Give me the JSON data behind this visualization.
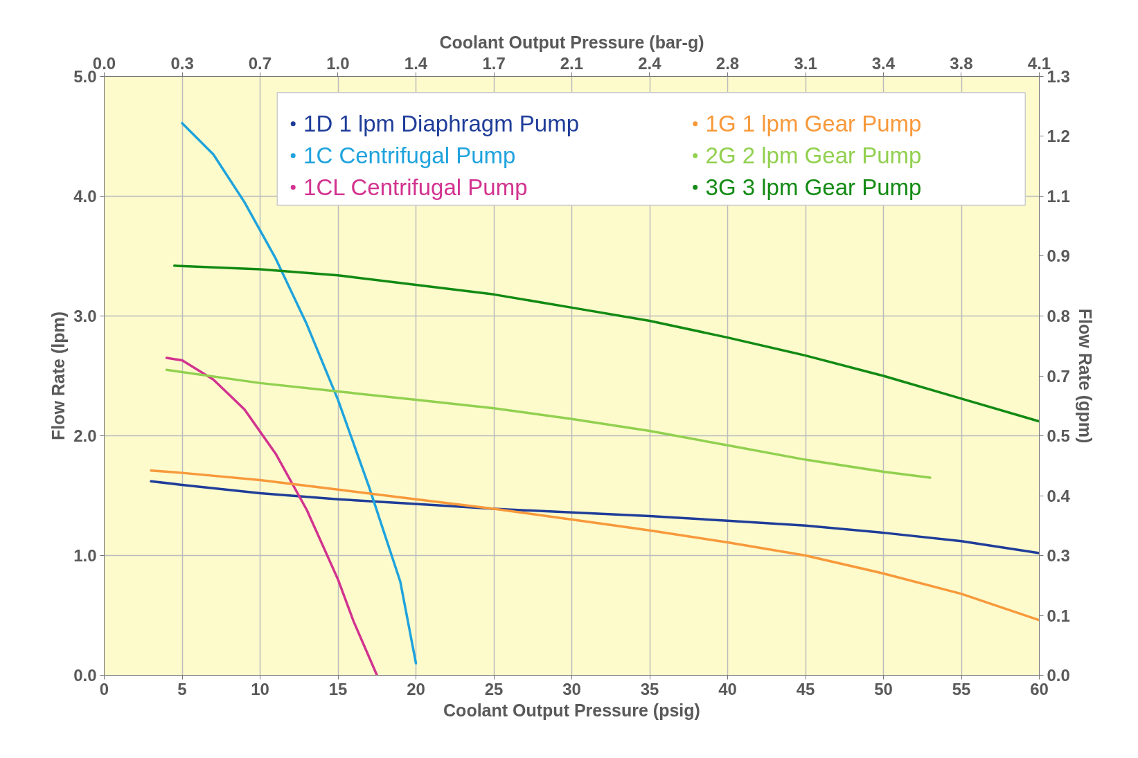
{
  "chart_data": {
    "type": "line",
    "xlabel": "Coolant Output Pressure (psig)",
    "x2label": "Coolant Output Pressure (bar-g)",
    "ylabel": "Flow Rate (lpm)",
    "y2label": "Flow Rate (gpm)",
    "xlim": [
      0,
      60
    ],
    "xticks": [
      0,
      5,
      10,
      15,
      20,
      25,
      30,
      35,
      40,
      45,
      50,
      55,
      60
    ],
    "ylim": [
      0,
      5
    ],
    "yticks": [
      {
        "value": 0,
        "label": "0.0"
      },
      {
        "value": 1,
        "label": "1.0"
      },
      {
        "value": 2,
        "label": "2.0"
      },
      {
        "value": 3,
        "label": "3.0"
      },
      {
        "value": 4,
        "label": "4.0"
      },
      {
        "value": 5,
        "label": "5.0"
      }
    ],
    "x2lim": [
      0,
      4.137
    ],
    "x2ticks": [
      {
        "value": 0,
        "label": "0.0"
      },
      {
        "value": 0.345,
        "label": "0.3"
      },
      {
        "value": 0.689,
        "label": "0.7"
      },
      {
        "value": 1.034,
        "label": "1.0"
      },
      {
        "value": 1.379,
        "label": "1.4"
      },
      {
        "value": 1.724,
        "label": "1.7"
      },
      {
        "value": 2.068,
        "label": "2.1"
      },
      {
        "value": 2.413,
        "label": "2.4"
      },
      {
        "value": 2.758,
        "label": "2.8"
      },
      {
        "value": 3.103,
        "label": "3.1"
      },
      {
        "value": 3.447,
        "label": "3.4"
      },
      {
        "value": 3.792,
        "label": "3.8"
      },
      {
        "value": 4.137,
        "label": "4.1"
      }
    ],
    "y2lim": [
      0,
      1.321
    ],
    "y2ticks": [
      {
        "value": 0,
        "label": "0.0"
      },
      {
        "value": 0.132,
        "label": "0.1"
      },
      {
        "value": 0.264,
        "label": "0.3"
      },
      {
        "value": 0.396,
        "label": "0.4"
      },
      {
        "value": 0.528,
        "label": "0.5"
      },
      {
        "value": 0.66,
        "label": "0.7"
      },
      {
        "value": 0.793,
        "label": "0.8"
      },
      {
        "value": 0.925,
        "label": "0.9"
      },
      {
        "value": 1.057,
        "label": "1.1"
      },
      {
        "value": 1.189,
        "label": "1.2"
      },
      {
        "value": 1.321,
        "label": "1.3"
      }
    ],
    "grid": true,
    "legend": "top",
    "marker": "none",
    "line_style": "solid",
    "series": [
      {
        "name": "1D 1 lpm Diaphragm Pump",
        "color": "#1f3d99",
        "x": [
          3,
          5,
          10,
          15,
          20,
          25,
          30,
          35,
          40,
          45,
          50,
          55,
          60
        ],
        "values": [
          1.62,
          1.59,
          1.52,
          1.47,
          1.43,
          1.39,
          1.36,
          1.33,
          1.29,
          1.25,
          1.19,
          1.12,
          1.02
        ]
      },
      {
        "name": "1C Centrifugal Pump",
        "color": "#1fa3dd",
        "x": [
          5,
          7,
          9,
          11,
          13,
          15,
          17,
          19,
          20
        ],
        "values": [
          4.61,
          4.35,
          3.95,
          3.48,
          2.93,
          2.3,
          1.57,
          0.78,
          0.1
        ]
      },
      {
        "name": "1CL Centrifugal Pump",
        "color": "#d2338f",
        "x": [
          4,
          5,
          7,
          9,
          11,
          13,
          15,
          16,
          17.5
        ],
        "values": [
          2.65,
          2.63,
          2.47,
          2.22,
          1.85,
          1.38,
          0.8,
          0.45,
          0.0
        ]
      },
      {
        "name": "1G 1 lpm Gear Pump",
        "color": "#f7993b",
        "x": [
          3,
          5,
          10,
          15,
          20,
          25,
          30,
          35,
          40,
          45,
          50,
          55,
          60
        ],
        "values": [
          1.71,
          1.69,
          1.63,
          1.55,
          1.47,
          1.39,
          1.3,
          1.21,
          1.11,
          1.0,
          0.85,
          0.68,
          0.46
        ]
      },
      {
        "name": "2G 2 lpm Gear Pump",
        "color": "#92d050",
        "x": [
          4,
          10,
          15,
          20,
          25,
          30,
          35,
          40,
          45,
          50,
          53
        ],
        "values": [
          2.55,
          2.44,
          2.37,
          2.3,
          2.23,
          2.14,
          2.04,
          1.92,
          1.8,
          1.7,
          1.65
        ]
      },
      {
        "name": "3G 3 lpm Gear Pump",
        "color": "#138a13",
        "x": [
          4.5,
          10,
          15,
          20,
          25,
          30,
          35,
          40,
          45,
          50,
          55,
          60
        ],
        "values": [
          3.42,
          3.39,
          3.34,
          3.26,
          3.18,
          3.07,
          2.96,
          2.82,
          2.67,
          2.5,
          2.31,
          2.12
        ]
      }
    ]
  }
}
